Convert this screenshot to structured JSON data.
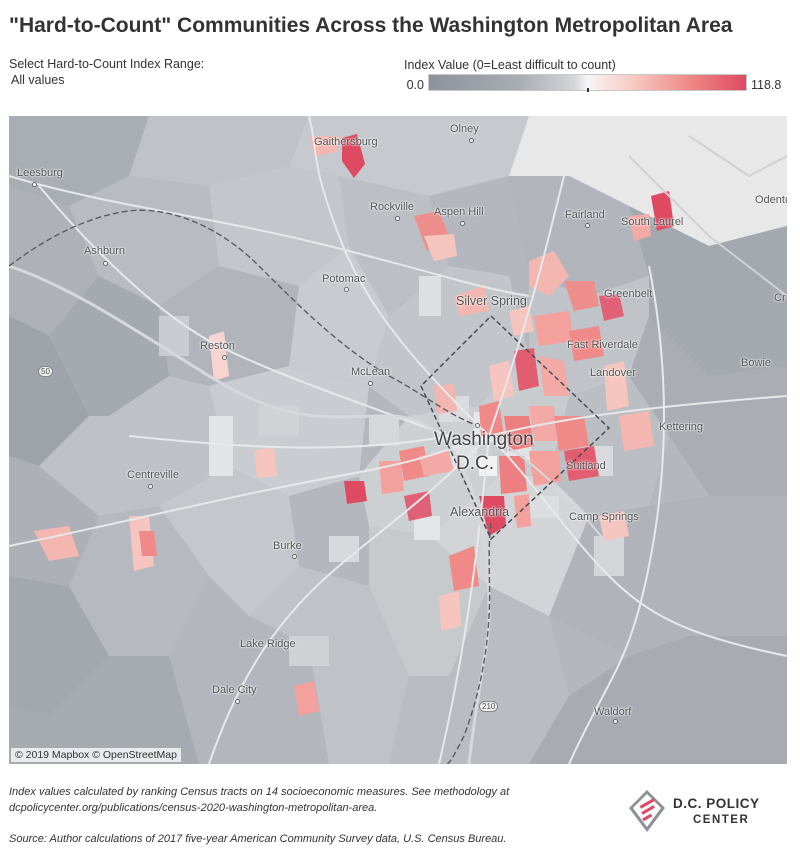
{
  "title": "\"Hard-to-Count\" Communities Across the Washington Metropolitan Area",
  "filter": {
    "label": "Select Hard-to-Count Index Range:",
    "value": "All values"
  },
  "legend": {
    "title": "Index Value (0=Least difficult to count)",
    "min": "0.0",
    "max": "118.8",
    "colors": {
      "low": "#8d939b",
      "mid": "#f7f7f7",
      "high": "#dd4a62"
    }
  },
  "map": {
    "places": [
      "Olney",
      "Gaithersburg",
      "Leesburg",
      "Rockville",
      "Aspen Hill",
      "Fairland",
      "South Laurel",
      "Odenton",
      "Ashburn",
      "Potomac",
      "Silver Spring",
      "Greenbelt",
      "Reston",
      "Fast Riverdale",
      "McLean",
      "Landover",
      "Bowie",
      "Kettering",
      "Washington",
      "D.C.",
      "Suitland",
      "Centreville",
      "Alexandria",
      "Camp Springs",
      "Burke",
      "Lake Ridge",
      "Dale City",
      "Waldorf",
      "Cr"
    ],
    "shields": [
      "50",
      "210"
    ],
    "attribution": "© 2019 Mapbox © OpenStreetMap"
  },
  "footnote": {
    "line1": "Index values calculated by ranking Census tracts on 14 socioeconomic measures. See methodology at",
    "line2": "dcpolicycenter.org/publications/census-2020-washington-metropolitan-area.",
    "source": "Source: Author calculations of 2017 five-year American Community Survey data, U.S. Census Bureau."
  },
  "logo": {
    "name": "D.C. POLICY",
    "sub": "CENTER"
  }
}
